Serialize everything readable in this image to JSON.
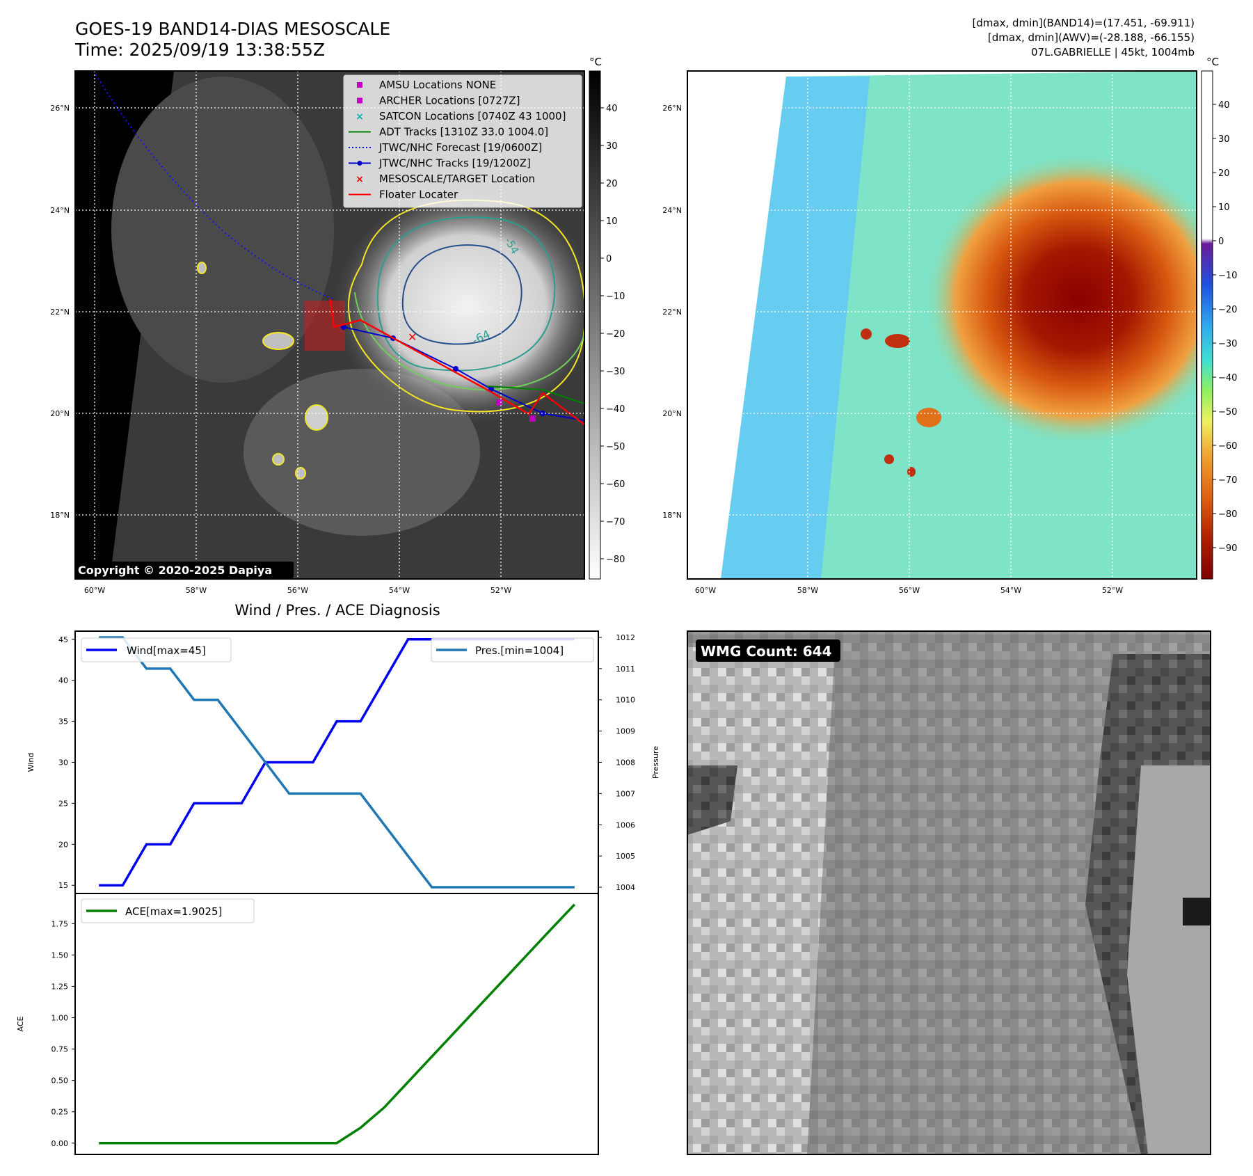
{
  "header": {
    "title_line1": "GOES-19 BAND14-DIAS MESOSCALE",
    "title_line2": "Time: 2025/09/19 13:38:55Z",
    "stats_line1": "[dmax, dmin](BAND14)=(17.451, -69.911)",
    "stats_line2": "[dmax, dmin](AWV)=(-28.188, -66.155)",
    "stats_line3": "07L.GABRIELLE | 45kt, 1004mb"
  },
  "ir_panel": {
    "copyright": "Copyright © 2020-2025 Dapiya",
    "cbar_unit": "°C",
    "cbar_ticks": [
      "40",
      "30",
      "20",
      "10",
      "0",
      "−10",
      "−20",
      "−30",
      "−40",
      "−50",
      "−60",
      "−70",
      "−80"
    ],
    "lat_labels": [
      "26°N",
      "24°N",
      "22°N",
      "20°N",
      "18°N"
    ],
    "lon_labels": [
      "60°W",
      "58°W",
      "56°W",
      "54°W",
      "52°W"
    ],
    "contour_labels": [
      "-54",
      "-64"
    ],
    "legend": [
      {
        "label": "AMSU Locations NONE",
        "color": "#c000c0",
        "marker": "square"
      },
      {
        "label": "ARCHER Locations [0727Z]",
        "color": "#c000c0",
        "marker": "square"
      },
      {
        "label": "SATCON Locations [0740Z 43 1000]",
        "color": "#00b0b0",
        "marker": "x"
      },
      {
        "label": "ADT Tracks [1310Z 33.0 1004.0]",
        "color": "#008000",
        "marker": "line"
      },
      {
        "label": "JTWC/NHC Forecast [19/0600Z]",
        "color": "#0000ff",
        "marker": "dotted"
      },
      {
        "label": "JTWC/NHC Tracks [19/1200Z]",
        "color": "#0000cc",
        "marker": "linedot"
      },
      {
        "label": "MESOSCALE/TARGET Location",
        "color": "#ff0000",
        "marker": "x"
      },
      {
        "label": "Floater Locater",
        "color": "#ff0000",
        "marker": "line"
      }
    ]
  },
  "awv_panel": {
    "cbar_unit": "°C",
    "cbar_ticks": [
      "40",
      "30",
      "20",
      "10",
      "0",
      "−10",
      "−20",
      "−30",
      "−40",
      "−50",
      "−60",
      "−70",
      "−80",
      "−90"
    ],
    "lat_labels": [
      "26°N",
      "24°N",
      "22°N",
      "20°N",
      "18°N"
    ],
    "lon_labels": [
      "60°W",
      "58°W",
      "56°W",
      "54°W",
      "52°W"
    ]
  },
  "wmg_panel": {
    "count_label": "WMG Count: 644"
  },
  "colors": {
    "wind": "#0000ee",
    "pressure": "#1f77b4",
    "ace": "#008000"
  },
  "chart_data": [
    {
      "type": "line",
      "title": "Wind / Pres. / ACE Diagnosis",
      "x": [
        0,
        1,
        2,
        3,
        4,
        5,
        6,
        7,
        8,
        9,
        10,
        11,
        12,
        13,
        14,
        15,
        16,
        17,
        18,
        19,
        20
      ],
      "ylabel": "Wind",
      "y2label": "Pressure",
      "ylim": [
        14,
        46
      ],
      "y2lim": [
        1003.8,
        1012.2
      ],
      "yticks": [
        15,
        20,
        25,
        30,
        35,
        40,
        45
      ],
      "y2ticks": [
        1004,
        1005,
        1006,
        1007,
        1008,
        1009,
        1010,
        1011,
        1012
      ],
      "series": [
        {
          "name": "Wind[max=45]",
          "axis": "left",
          "values": [
            15,
            15,
            20,
            20,
            25,
            25,
            25,
            30,
            30,
            30,
            35,
            35,
            40,
            45,
            45,
            45,
            45,
            45,
            45,
            45,
            45
          ]
        },
        {
          "name": "Pres.[min=1004]",
          "axis": "right",
          "values": [
            1012,
            1012,
            1011,
            1011,
            1010,
            1010,
            1009,
            1008,
            1007,
            1007,
            1007,
            1007,
            1006,
            1005,
            1004,
            1004,
            1004,
            1004,
            1004,
            1004,
            1004
          ]
        }
      ]
    },
    {
      "type": "line",
      "x": [
        0,
        1,
        2,
        3,
        4,
        5,
        6,
        7,
        8,
        9,
        10,
        11,
        12,
        13,
        14,
        15,
        16,
        17,
        18,
        19,
        20
      ],
      "ylabel": "ACE",
      "ylim": [
        -0.09,
        1.99
      ],
      "yticks": [
        "0.00",
        "0.25",
        "0.50",
        "0.75",
        "1.00",
        "1.25",
        "1.50",
        "1.75"
      ],
      "series": [
        {
          "name": "ACE[max=1.9025]",
          "values": [
            0,
            0,
            0,
            0,
            0,
            0,
            0,
            0,
            0,
            0,
            0,
            0.1225,
            0.285,
            0.4875,
            0.69,
            0.8925,
            1.095,
            1.2975,
            1.5,
            1.7025,
            1.9025
          ]
        }
      ]
    }
  ]
}
